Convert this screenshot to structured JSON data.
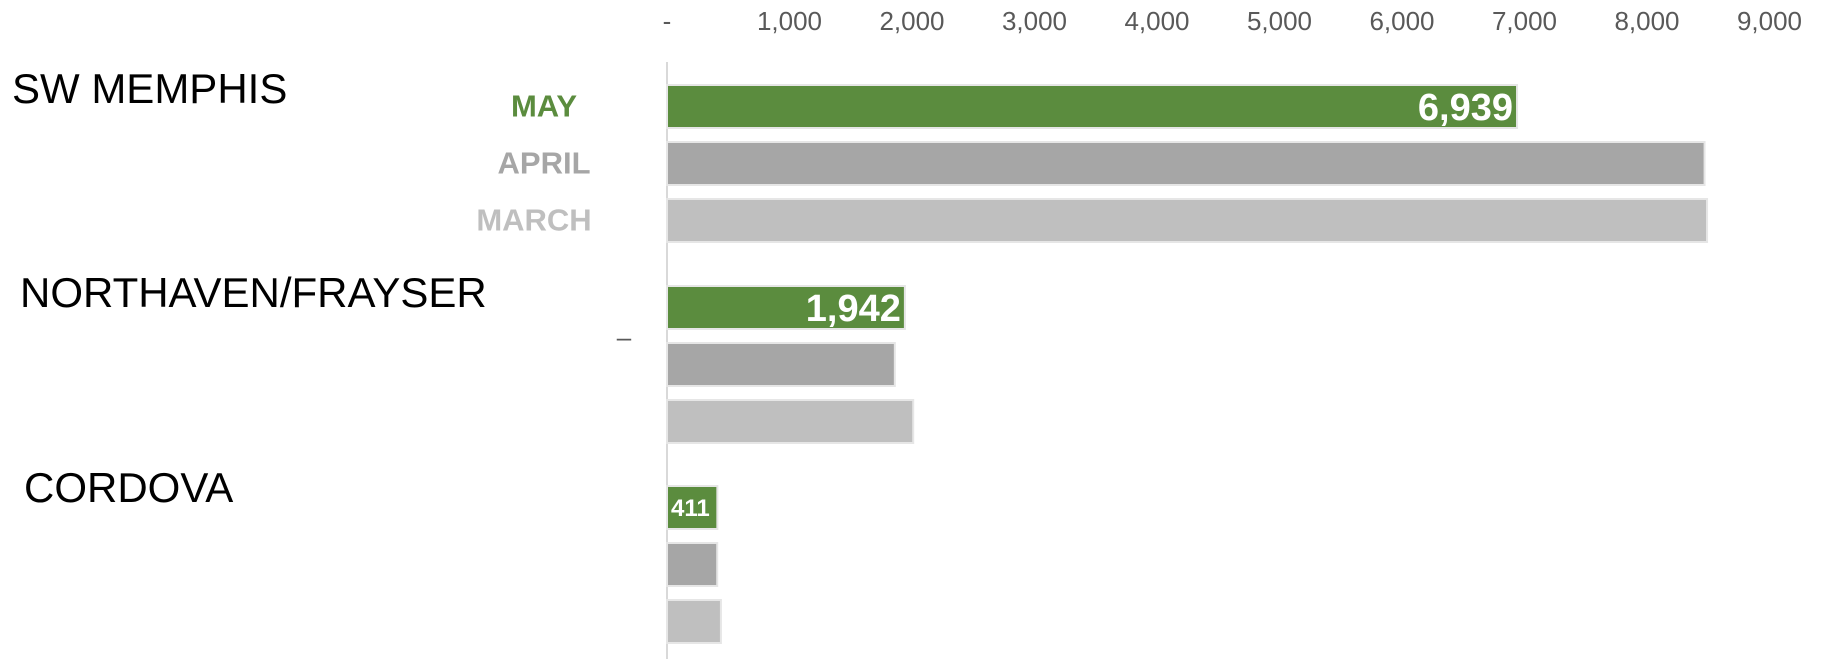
{
  "chart_data": {
    "type": "bar",
    "orientation": "horizontal",
    "title": "",
    "xlabel": "",
    "ylabel": "",
    "xlim": [
      0,
      9000
    ],
    "x_ticks": [
      0,
      1000,
      2000,
      3000,
      4000,
      5000,
      6000,
      7000,
      8000,
      9000
    ],
    "x_tick_labels": [
      "-",
      "1,000",
      "2,000",
      "3,000",
      "4,000",
      "5,000",
      "6,000",
      "7,000",
      "8,000",
      "9,000"
    ],
    "grid": false,
    "categories": [
      "SW MEMPHIS",
      "NORTHAVEN/FRAYSER",
      "CORDOVA"
    ],
    "series": [
      {
        "name": "MAY",
        "color": "#5b8c3e",
        "values": [
          6939,
          1942,
          411
        ],
        "data_labels": [
          "6,939",
          "1,942",
          "411"
        ]
      },
      {
        "name": "APRIL",
        "color": "#a6a6a6",
        "values": [
          8470,
          1860,
          410
        ],
        "data_labels": []
      },
      {
        "name": "MARCH",
        "color": "#bfbfbf",
        "values": [
          8490,
          2010,
          440
        ],
        "data_labels": []
      }
    ],
    "legend_placement": "inline-left-of-first-group",
    "stray_label": "–"
  }
}
